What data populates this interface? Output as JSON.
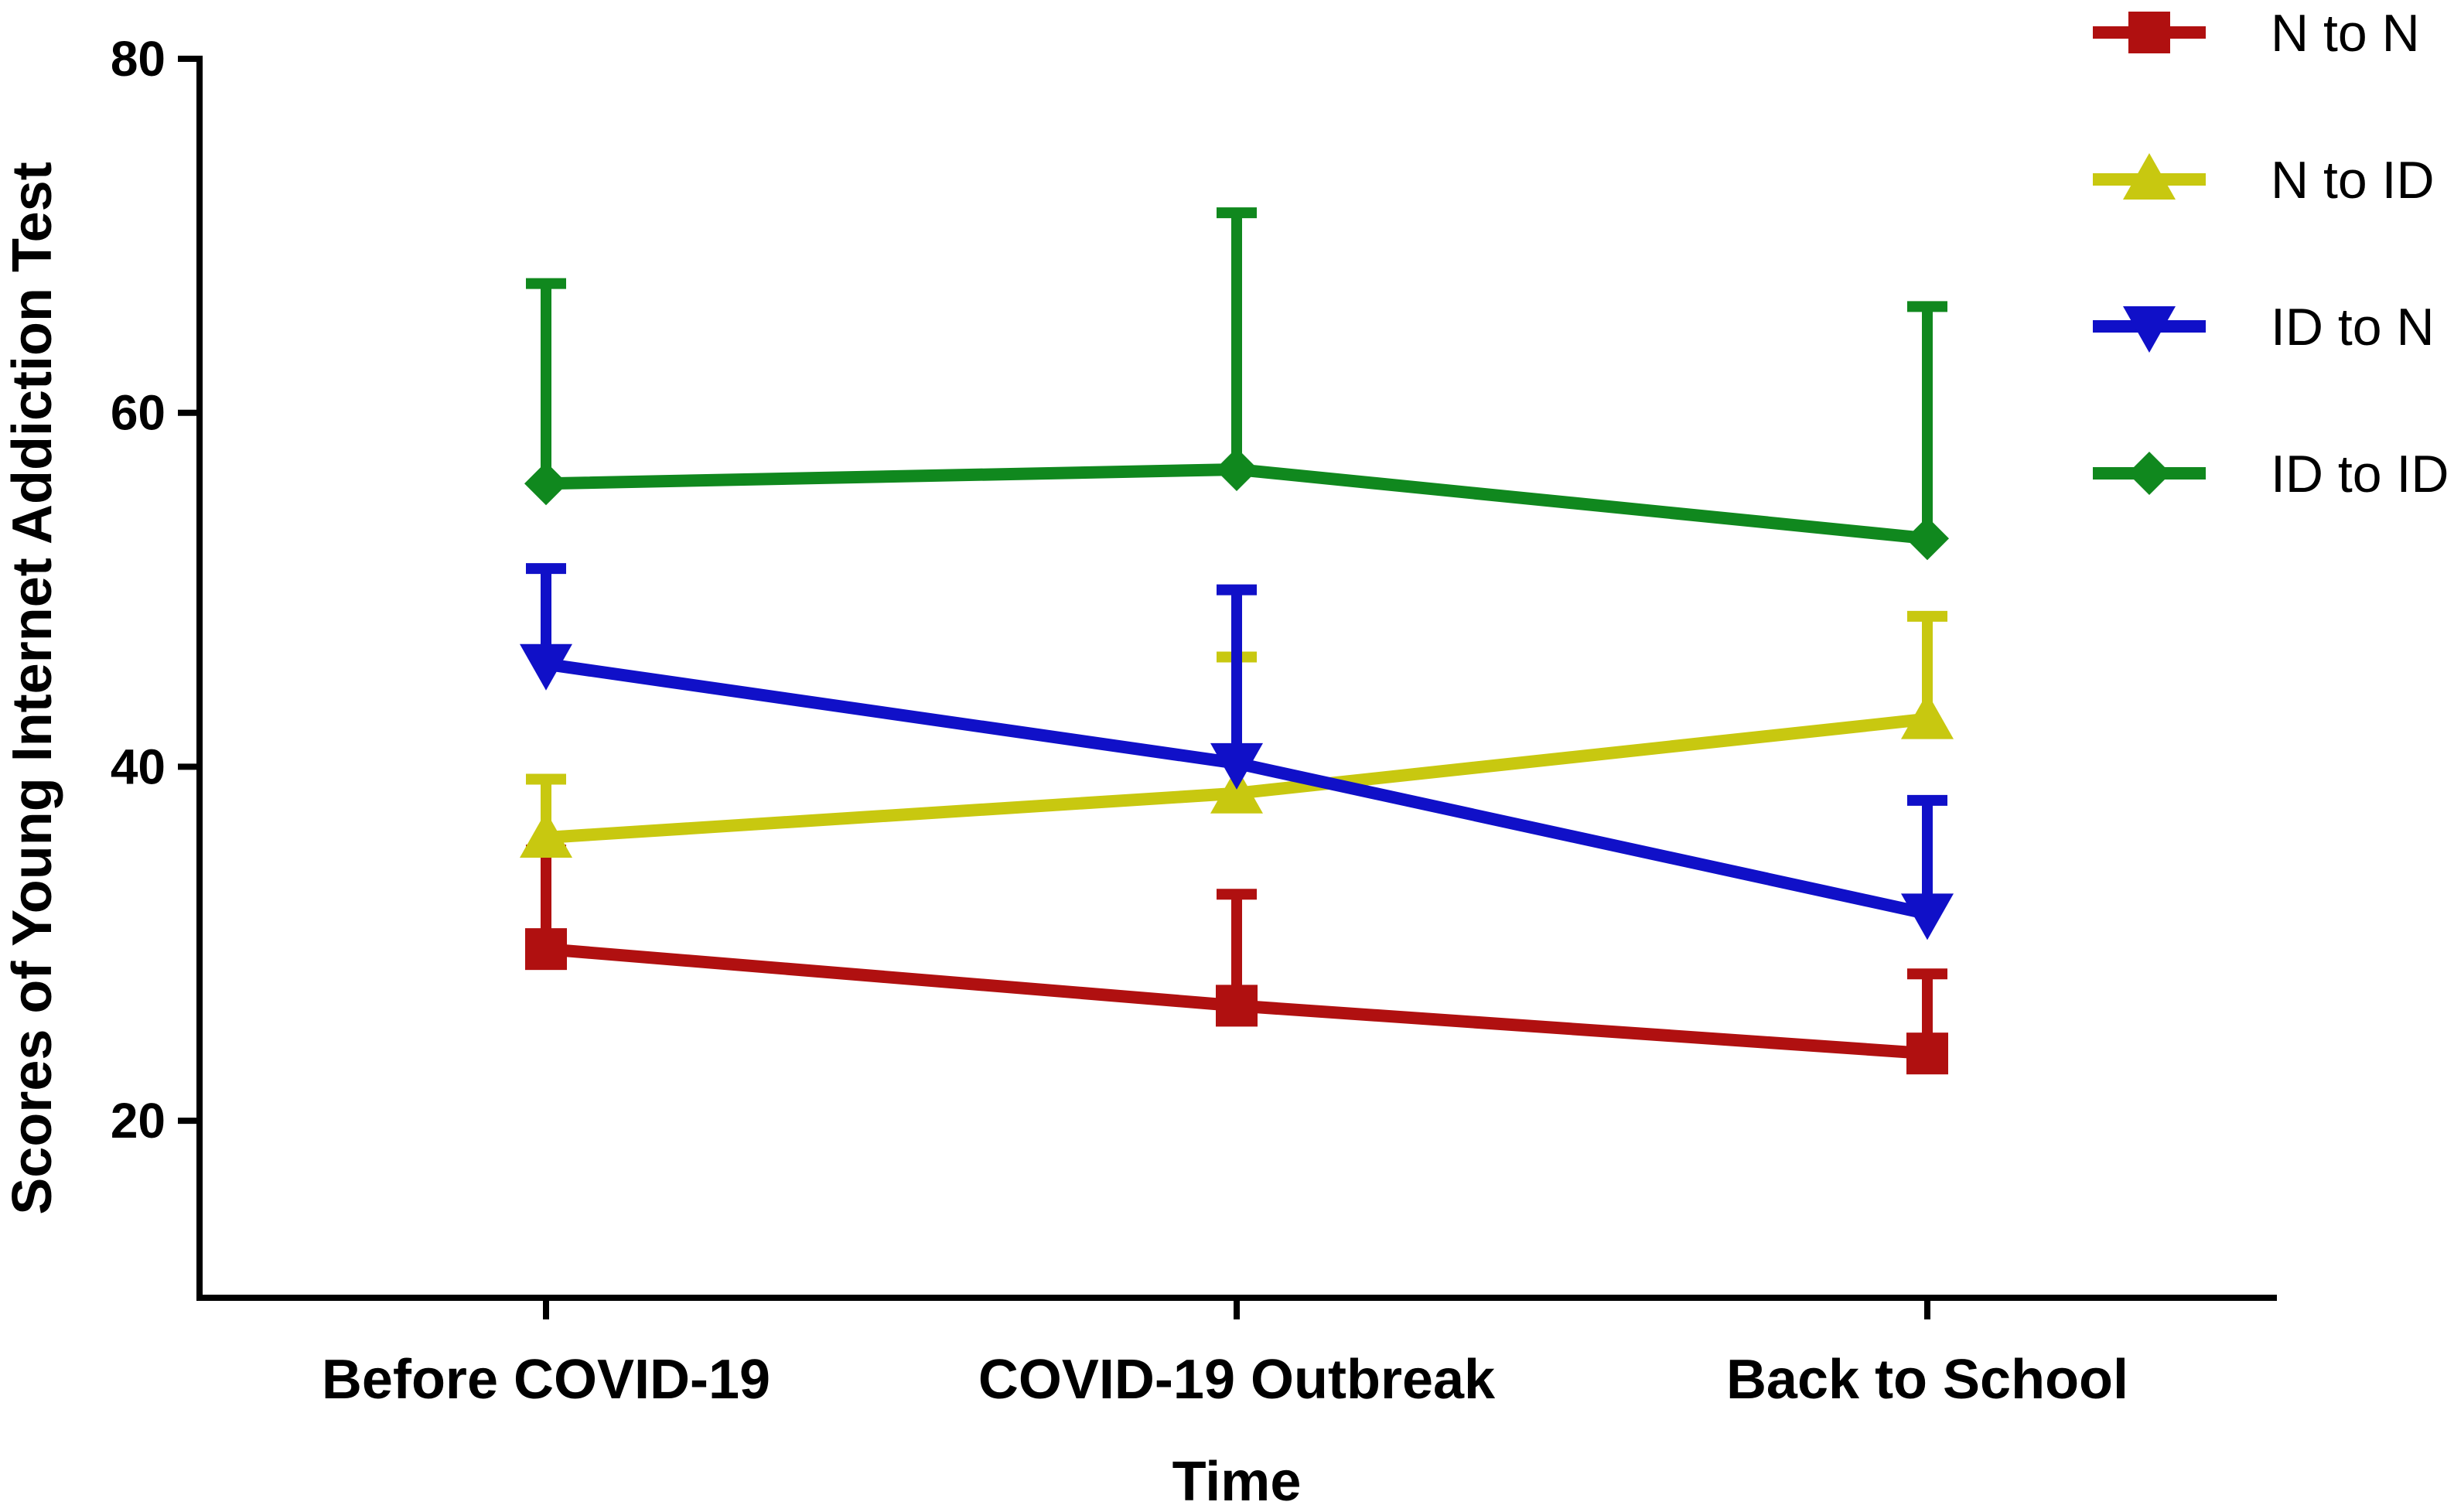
{
  "chart_data": {
    "type": "line",
    "title": "",
    "xlabel": "Time",
    "ylabel": "Scores of Young Internet Addiction Test",
    "categories": [
      "Before COVID-19",
      "COVID-19 Outbreak",
      "Back to School"
    ],
    "ylim": [
      10,
      80
    ],
    "yticks": [
      20,
      40,
      60,
      80
    ],
    "grid": false,
    "legend_position": "top-right",
    "series": [
      {
        "name": "N to N",
        "color": "#b01010",
        "marker": "square",
        "values": [
          29.7,
          26.5,
          23.8
        ],
        "error_upper": [
          35.3,
          32.8,
          28.3
        ]
      },
      {
        "name": "N to ID",
        "color": "#c8c810",
        "marker": "triangle-up",
        "values": [
          36.0,
          38.5,
          42.7
        ],
        "error_upper": [
          39.3,
          46.2,
          48.5
        ]
      },
      {
        "name": "ID to N",
        "color": "#1010c8",
        "marker": "triangle-down",
        "values": [
          45.8,
          40.2,
          31.7
        ],
        "error_upper": [
          51.2,
          50.0,
          38.1
        ]
      },
      {
        "name": "ID to ID",
        "color": "#10881e",
        "marker": "diamond",
        "values": [
          56.0,
          56.8,
          52.9
        ],
        "error_upper": [
          67.3,
          71.3,
          66.0
        ]
      }
    ]
  }
}
